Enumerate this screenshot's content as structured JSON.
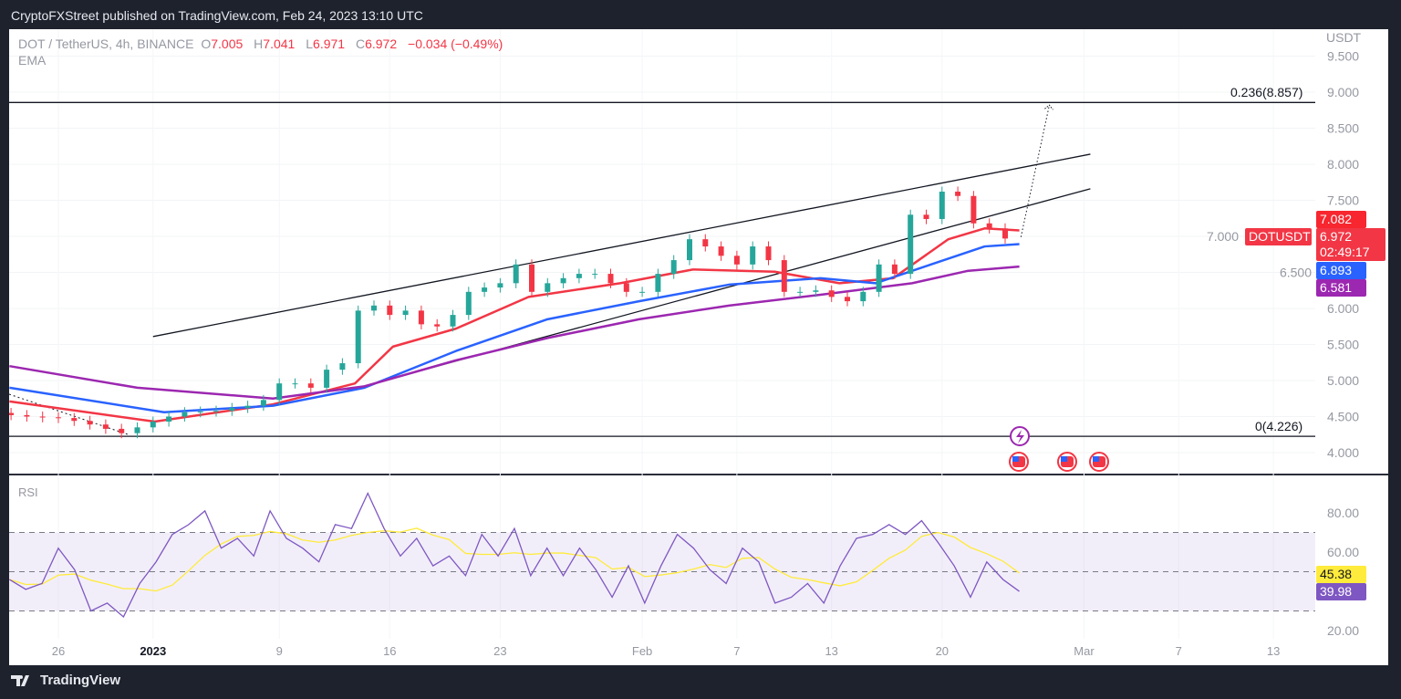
{
  "header": {
    "published": "CryptoFXStreet published on TradingView.com, Feb 24, 2023 13:10 UTC"
  },
  "legend": {
    "symbol": "DOT / TetherUS, 4h, BINANCE",
    "o_label": "O",
    "o": "7.005",
    "h_label": "H",
    "h": "7.041",
    "l_label": "L",
    "l": "6.971",
    "c_label": "C",
    "c": "6.972",
    "change": "−0.034 (−0.49%)",
    "indicator": "EMA"
  },
  "rsi_pane": {
    "label": "RSI",
    "rsi_value": "39.98",
    "signal_value": "45.38"
  },
  "price_axis": {
    "currency": "USDT"
  },
  "badges": {
    "symbol": "DOTUSDT",
    "ema_red": "7.082",
    "last": "6.972",
    "countdown": "02:49:17",
    "ema_blue": "6.893",
    "ema_purple": "6.581"
  },
  "fib": {
    "upper": "0.236(8.857)",
    "lower": "0(4.226)"
  },
  "footer": {
    "brand": "TradingView"
  },
  "colors": {
    "up": "#26a69a",
    "down": "#f23645",
    "ema_red": "#f23645",
    "ema_blue": "#2962ff",
    "ema_purple": "#9c27b0",
    "rsi": "#7e57c2",
    "signal": "#ffeb3b"
  },
  "chart_data": [
    {
      "type": "candlestick",
      "title": "DOT / TetherUS, 4h, BINANCE",
      "x_unit": "days since Dec 26 2022",
      "ylim": [
        3.7,
        9.55
      ],
      "y_ticks": [
        "9.500",
        "9.000",
        "8.500",
        "8.000",
        "7.500",
        "7.000",
        "6.500",
        "6.000",
        "5.500",
        "5.000",
        "4.500",
        "4.000"
      ],
      "y_tick_values": [
        9.5,
        9,
        8.5,
        8,
        7.5,
        7,
        6.5,
        6,
        5.5,
        5,
        4.5,
        4
      ],
      "x_ticks": [
        {
          "day": 0,
          "label": "26"
        },
        {
          "day": 6,
          "label": "2023"
        },
        {
          "day": 14,
          "label": "9"
        },
        {
          "day": 21,
          "label": "16"
        },
        {
          "day": 28,
          "label": "23"
        },
        {
          "day": 37,
          "label": "Feb"
        },
        {
          "day": 43,
          "label": "7"
        },
        {
          "day": 49,
          "label": "13"
        },
        {
          "day": 56,
          "label": "20"
        },
        {
          "day": 65,
          "label": "Mar"
        },
        {
          "day": 71,
          "label": "7"
        },
        {
          "day": 77,
          "label": "13"
        }
      ],
      "close_start_day": -3,
      "closes": [
        4.52,
        4.5,
        4.49,
        4.48,
        4.44,
        4.39,
        4.33,
        4.27,
        4.35,
        4.43,
        4.5,
        4.56,
        4.57,
        4.58,
        4.62,
        4.65,
        4.73,
        4.96,
        4.96,
        4.9,
        5.15,
        5.24,
        5.97,
        6.04,
        5.91,
        5.97,
        5.78,
        5.75,
        5.91,
        6.23,
        6.29,
        6.35,
        6.61,
        6.23,
        6.35,
        6.42,
        6.48,
        6.48,
        6.35,
        6.23,
        6.23,
        6.48,
        6.67,
        6.96,
        6.86,
        6.73,
        6.61,
        6.86,
        6.67,
        6.23,
        6.23,
        6.25,
        6.16,
        6.1,
        6.23,
        6.61,
        6.48,
        7.3,
        7.24,
        7.62,
        7.56,
        7.18,
        7.11,
        6.97
      ],
      "ema_series": [
        {
          "name": "EMA red",
          "color_key": "ema_red",
          "points": [
            [
              -3.1,
              4.71
            ],
            [
              6.1,
              4.43
            ],
            [
              13.6,
              4.67
            ],
            [
              18.8,
              4.96
            ],
            [
              21.2,
              5.47
            ],
            [
              25.2,
              5.72
            ],
            [
              29.8,
              6.16
            ],
            [
              35.6,
              6.35
            ],
            [
              40.2,
              6.54
            ],
            [
              45.4,
              6.51
            ],
            [
              49.5,
              6.35
            ],
            [
              52.9,
              6.42
            ],
            [
              56.4,
              6.96
            ],
            [
              58.7,
              7.11
            ],
            [
              60.9,
              7.082
            ]
          ]
        },
        {
          "name": "EMA blue",
          "color_key": "ema_blue",
          "points": [
            [
              -3.1,
              4.9
            ],
            [
              6.7,
              4.56
            ],
            [
              13.6,
              4.65
            ],
            [
              19.4,
              4.9
            ],
            [
              25.2,
              5.41
            ],
            [
              31.0,
              5.85
            ],
            [
              36.8,
              6.1
            ],
            [
              42.5,
              6.33
            ],
            [
              48.3,
              6.42
            ],
            [
              51.8,
              6.35
            ],
            [
              55.3,
              6.61
            ],
            [
              58.7,
              6.86
            ],
            [
              60.9,
              6.893
            ]
          ]
        },
        {
          "name": "EMA purple",
          "color_key": "ema_purple",
          "points": [
            [
              -3.1,
              5.2
            ],
            [
              5.0,
              4.9
            ],
            [
              13.6,
              4.75
            ],
            [
              19.4,
              4.92
            ],
            [
              25.2,
              5.28
            ],
            [
              31.0,
              5.59
            ],
            [
              36.8,
              5.85
            ],
            [
              42.5,
              6.04
            ],
            [
              48.3,
              6.19
            ],
            [
              54.1,
              6.35
            ],
            [
              57.6,
              6.52
            ],
            [
              60.9,
              6.581
            ]
          ]
        }
      ],
      "trendlines": [
        {
          "name": "channel-upper",
          "from": [
            6.0,
            5.61
          ],
          "to": [
            65.4,
            8.14
          ]
        },
        {
          "name": "channel-lower",
          "from": [
            18.3,
            4.86
          ],
          "to": [
            65.4,
            7.66
          ]
        }
      ],
      "projection": {
        "from": [
          61.0,
          6.99
        ],
        "to": [
          62.8,
          8.82
        ]
      },
      "fib_levels": [
        {
          "ratio": 0.236,
          "price": 8.857
        },
        {
          "ratio": 0,
          "price": 4.226
        }
      ]
    },
    {
      "type": "line",
      "title": "RSI",
      "ylim": [
        14,
        95
      ],
      "y_ticks": [
        "80.00",
        "60.00",
        "20.00"
      ],
      "y_tick_values": [
        80,
        60,
        20
      ],
      "band": [
        30,
        70
      ],
      "mid": 50,
      "start_day": -3.1,
      "end_day": 60.9,
      "rsi": [
        46,
        41,
        44,
        62,
        51,
        30,
        34,
        27,
        44,
        55,
        69,
        74,
        81,
        62,
        67,
        58,
        81,
        67,
        62,
        55,
        74,
        72,
        90,
        72,
        58,
        67,
        53,
        58,
        48,
        69,
        58,
        72,
        48,
        62,
        48,
        62,
        51,
        37,
        53,
        34,
        53,
        69,
        62,
        51,
        44,
        62,
        55,
        34,
        37,
        44,
        34,
        53,
        67,
        69,
        74,
        69,
        76,
        65,
        53,
        37,
        55,
        46,
        39.98
      ]
    }
  ]
}
